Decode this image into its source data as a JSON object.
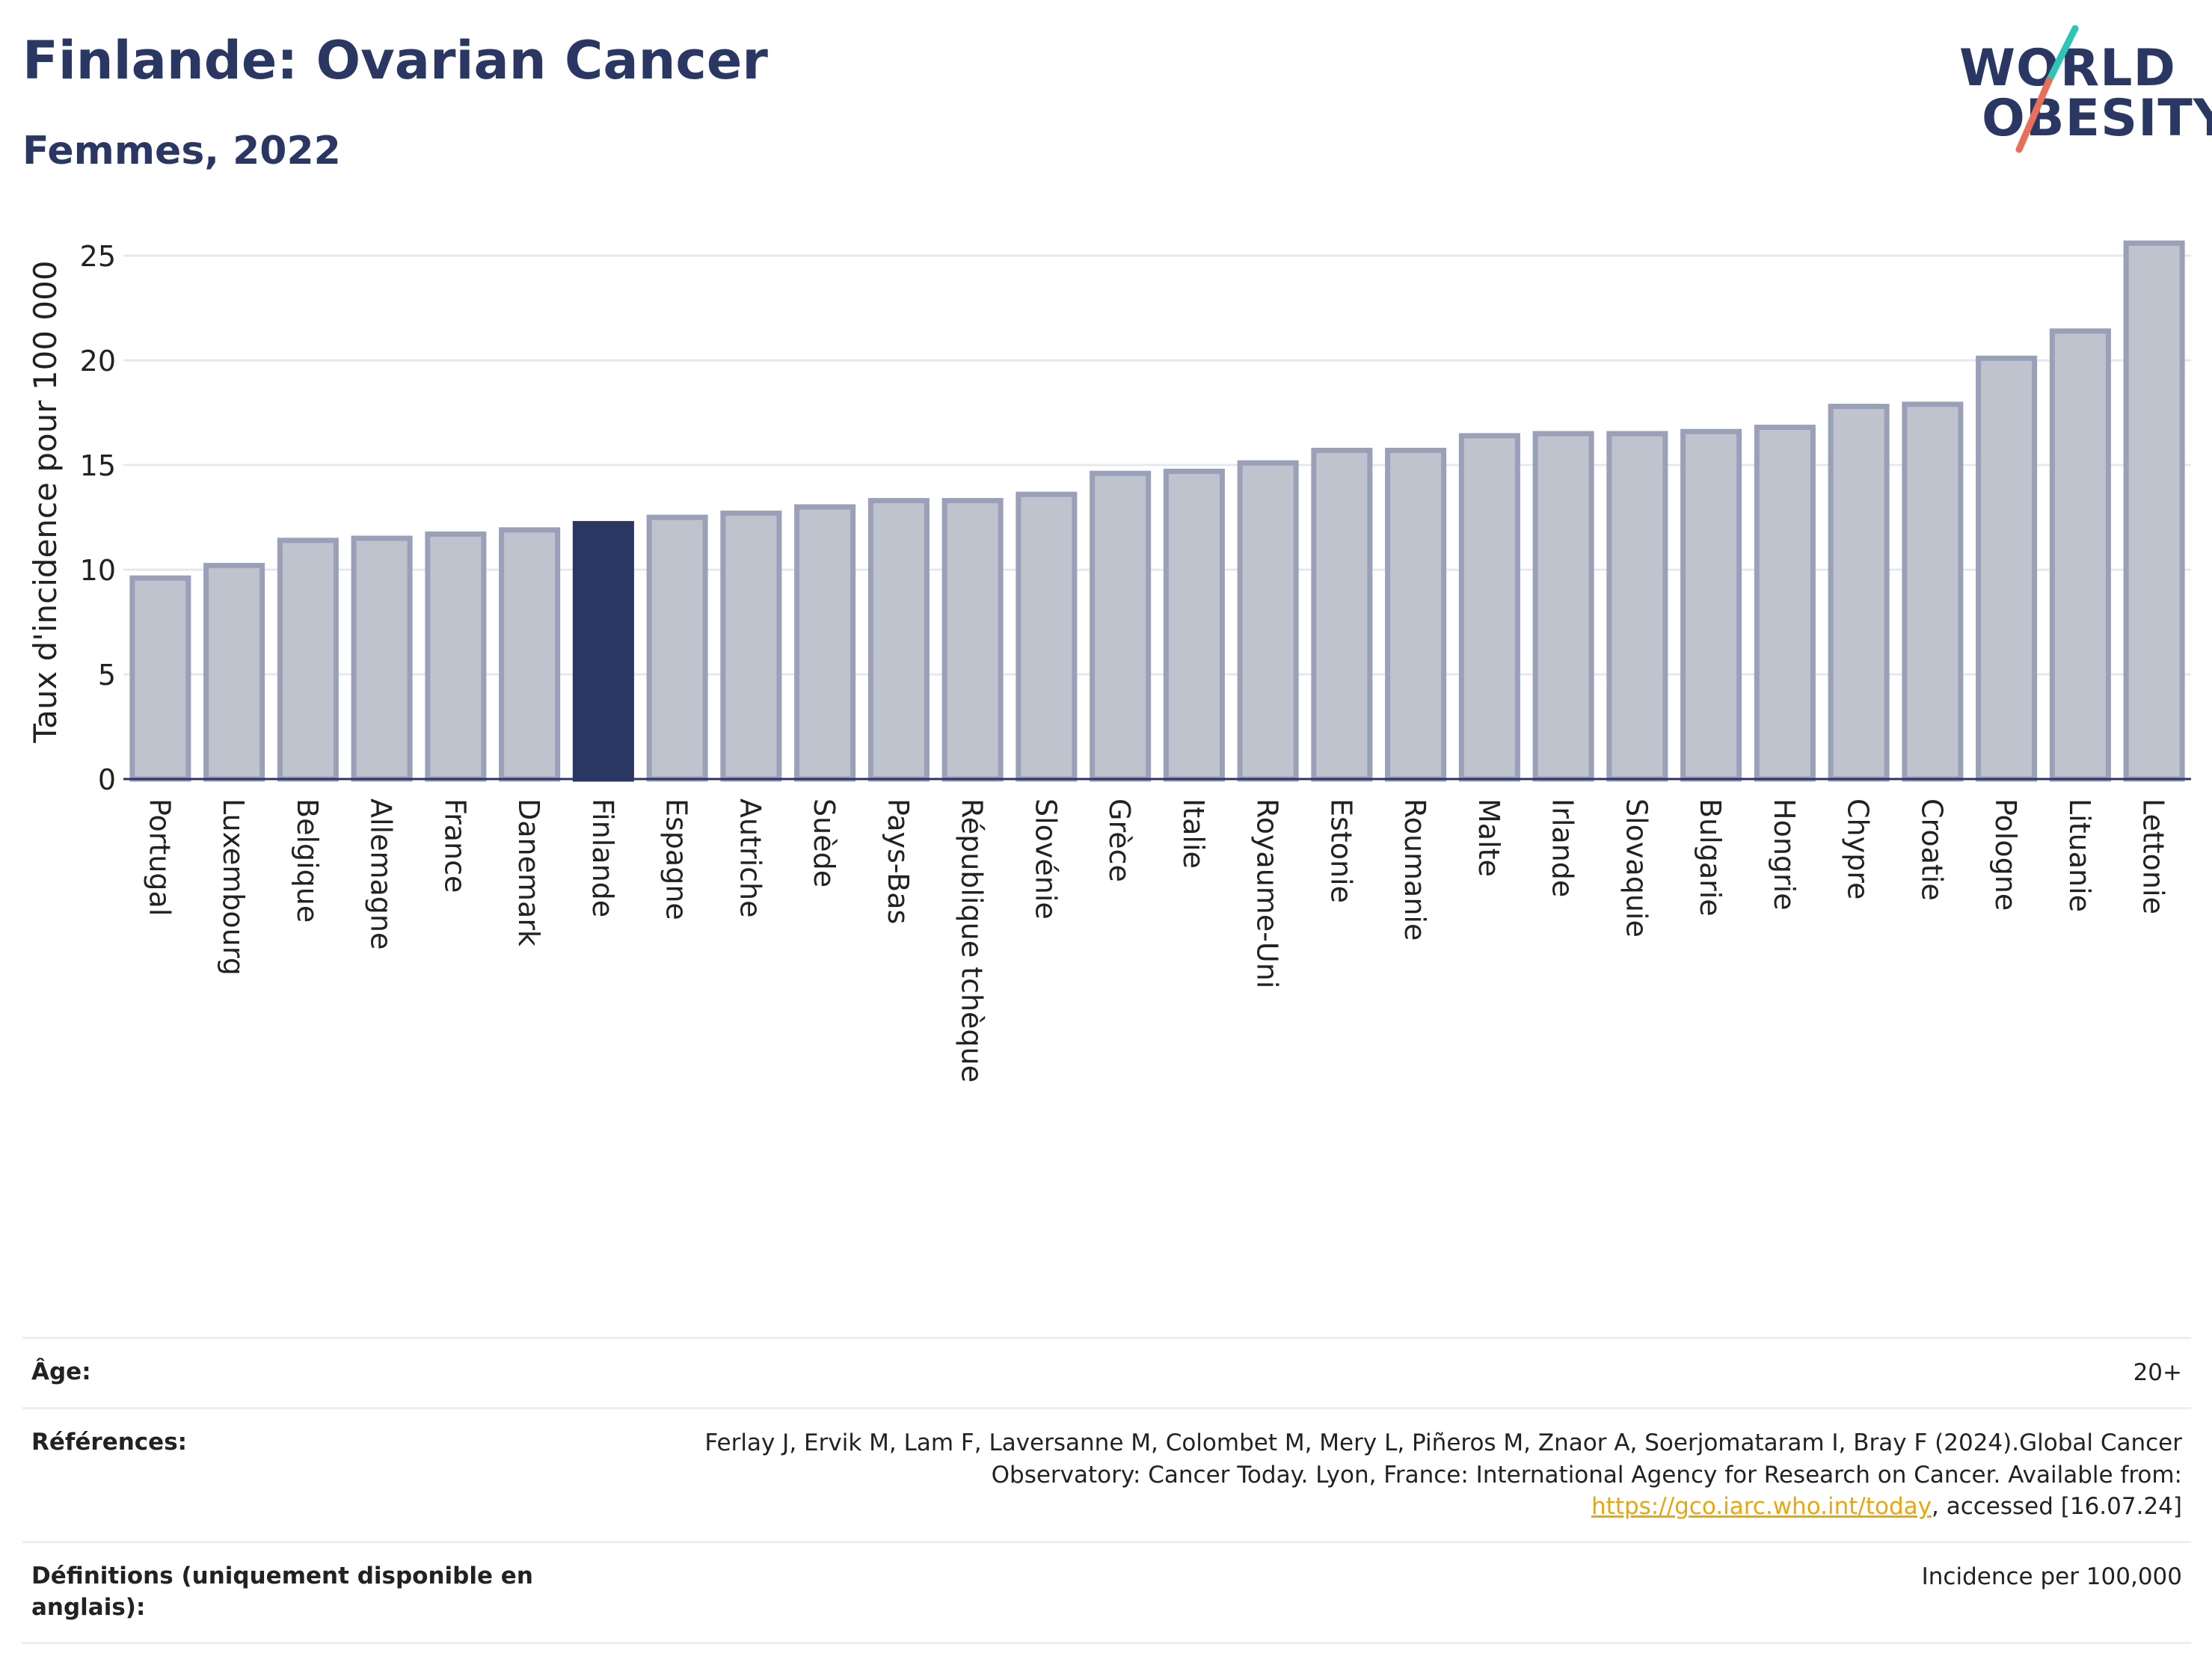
{
  "header": {
    "title": "Finlande: Ovarian Cancer",
    "subtitle": "Femmes, 2022"
  },
  "logo": {
    "line1": "WORLD",
    "line2": "OBESITY",
    "slash_colors": [
      "#2ec4b6",
      "#e8705a"
    ]
  },
  "chart_data": {
    "type": "bar",
    "ylabel": "Taux d'incidence pour 100 000",
    "ylim": [
      0,
      26.5
    ],
    "yticks": [
      0,
      5,
      10,
      15,
      20,
      25
    ],
    "grid": true,
    "highlight": "Finlande",
    "colors": {
      "bar": "#bfc3ce",
      "bar_border": "#9aa0b8",
      "highlight": "#2b3763",
      "grid": "#e6e8ee"
    },
    "categories": [
      "Portugal",
      "Luxembourg",
      "Belgique",
      "Allemagne",
      "France",
      "Danemark",
      "Finlande",
      "Espagne",
      "Autriche",
      "Suède",
      "Pays-Bas",
      "République tchèque",
      "Slovénie",
      "Grèce",
      "Italie",
      "Royaume-Uni",
      "Estonie",
      "Roumanie",
      "Malte",
      "Irlande",
      "Slovaquie",
      "Bulgarie",
      "Hongrie",
      "Chypre",
      "Croatie",
      "Pologne",
      "Lituanie",
      "Lettonie"
    ],
    "values": [
      9.6,
      10.2,
      11.4,
      11.5,
      11.7,
      11.9,
      12.2,
      12.5,
      12.7,
      13.0,
      13.3,
      13.3,
      13.6,
      14.6,
      14.7,
      15.1,
      15.7,
      15.7,
      16.4,
      16.5,
      16.5,
      16.6,
      16.8,
      17.8,
      17.9,
      20.1,
      21.4,
      25.6
    ]
  },
  "info_table": [
    {
      "label": "Âge:",
      "value": "20+"
    },
    {
      "label": "Références:",
      "value_before": "Ferlay J, Ervik M, Lam F, Laversanne M, Colombet M, Mery L, Piñeros M, Znaor A, Soerjomataram I, Bray F (2024).Global Cancer Observatory: Cancer Today. Lyon, France: International Agency for Research on Cancer. Available from: ",
      "link": "https://gco.iarc.who.int/today",
      "value_after": ", accessed [16.07.24]"
    },
    {
      "label": "Définitions (uniquement disponible en anglais):",
      "value": "Incidence per 100,000"
    }
  ]
}
